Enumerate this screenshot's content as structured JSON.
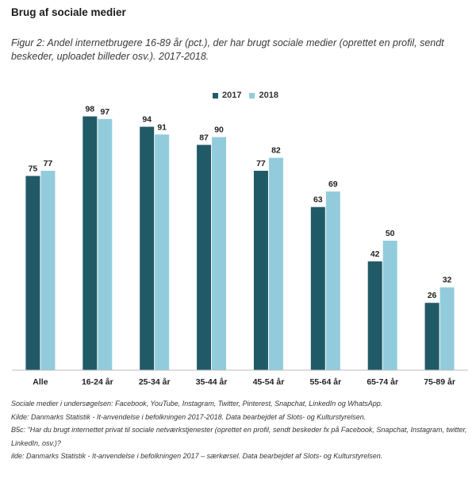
{
  "heading": "Brug af sociale medier",
  "caption": "Figur 2: Andel internetbrugere 16-89 år (pct.), der har brugt sociale medier (oprettet en profil, sendt beskeder, uploadet billeder osv.). 2017-2018.",
  "colors": {
    "s2017": "#215a67",
    "s2018": "#92ccdc",
    "axis": "#bdbdbd"
  },
  "chart_data": {
    "type": "bar",
    "categories": [
      "Alle",
      "16-24 år",
      "25-34 år",
      "35-44 år",
      "45-54 år",
      "55-64 år",
      "65-74 år",
      "75-89 år"
    ],
    "series": [
      {
        "name": "2017",
        "values": [
          75,
          98,
          94,
          87,
          77,
          63,
          42,
          26
        ]
      },
      {
        "name": "2018",
        "values": [
          77,
          97,
          91,
          90,
          82,
          69,
          50,
          32
        ]
      }
    ],
    "ylim": [
      0,
      100
    ],
    "grid": false,
    "legend": "top-center",
    "data_labels": true
  },
  "notes": [
    "Sociale medier i undersøgelsen: Facebook, YouTube, Instagram, Twitter, Pinterest, Snapchat, LinkedIn og WhatsApp.",
    "Kilde: Danmarks Statistik - It-anvendelse i befolkningen 2017-2018. Data bearbejdet af Slots- og Kulturstyrelsen.",
    "B5c: \"Har du brugt internettet privat til sociale netværkstjenester (oprettet en profil, sendt beskeder fx på Facebook, Snapchat, Instagram, twitter, LinkedIn, osv.)?",
    "ilde: Danmarks Statistik - It-anvendelse i befolkningen 2017 – særkørsel. Data bearbejdet af Slots- og Kulturstyrelsen."
  ]
}
